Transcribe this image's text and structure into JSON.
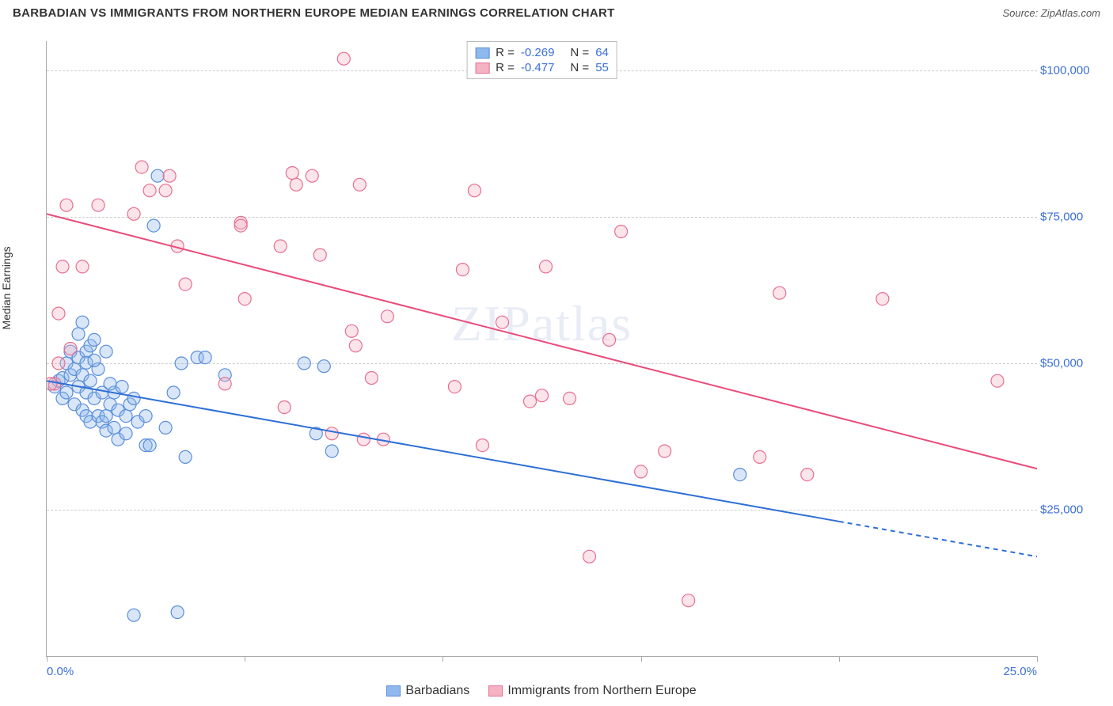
{
  "title": "BARBADIAN VS IMMIGRANTS FROM NORTHERN EUROPE MEDIAN EARNINGS CORRELATION CHART",
  "source": "Source: ZipAtlas.com",
  "ylabel": "Median Earnings",
  "watermark": "ZIPatlas",
  "chart": {
    "type": "scatter",
    "xlim": [
      0,
      25
    ],
    "ylim": [
      0,
      105000
    ],
    "xticks": [
      0,
      5,
      10,
      15,
      20,
      25
    ],
    "xtick_labels_shown": {
      "0": "0.0%",
      "25": "25.0%"
    },
    "yticks": [
      25000,
      50000,
      75000,
      100000
    ],
    "ytick_labels": [
      "$25,000",
      "$50,000",
      "$75,000",
      "$100,000"
    ],
    "grid_color": "#cccccc",
    "axis_color": "#aaaaaa",
    "background_color": "#ffffff",
    "tick_label_color": "#3b6fd6",
    "marker_radius": 8,
    "series": [
      {
        "name": "Barbadians",
        "color_fill": "#8fb8ec",
        "color_stroke": "#5a8edb",
        "line_color": "#2e6fd6",
        "R": "-0.269",
        "N": "64",
        "trend": {
          "x1": 0,
          "y1": 47000,
          "x2": 25,
          "y2": 17000,
          "dash_from_x": 20
        },
        "points": [
          [
            0.2,
            46000
          ],
          [
            0.3,
            47000
          ],
          [
            0.4,
            47500
          ],
          [
            0.4,
            44000
          ],
          [
            0.5,
            50000
          ],
          [
            0.5,
            45000
          ],
          [
            0.6,
            52000
          ],
          [
            0.6,
            48000
          ],
          [
            0.7,
            49000
          ],
          [
            0.7,
            43000
          ],
          [
            0.8,
            55000
          ],
          [
            0.8,
            51000
          ],
          [
            0.8,
            46000
          ],
          [
            0.9,
            57000
          ],
          [
            0.9,
            48000
          ],
          [
            0.9,
            42000
          ],
          [
            1.0,
            52000
          ],
          [
            1.0,
            45000
          ],
          [
            1.0,
            41000
          ],
          [
            1.1,
            53000
          ],
          [
            1.1,
            47000
          ],
          [
            1.1,
            40000
          ],
          [
            1.2,
            54000
          ],
          [
            1.2,
            44000
          ],
          [
            1.3,
            49000
          ],
          [
            1.3,
            41000
          ],
          [
            1.4,
            45000
          ],
          [
            1.4,
            40000
          ],
          [
            1.5,
            52000
          ],
          [
            1.5,
            41000
          ],
          [
            1.5,
            38500
          ],
          [
            1.6,
            43000
          ],
          [
            1.7,
            45000
          ],
          [
            1.7,
            39000
          ],
          [
            1.8,
            42000
          ],
          [
            1.8,
            37000
          ],
          [
            1.9,
            46000
          ],
          [
            2.0,
            41000
          ],
          [
            2.0,
            38000
          ],
          [
            2.1,
            43000
          ],
          [
            2.2,
            44000
          ],
          [
            2.3,
            40000
          ],
          [
            2.5,
            36000
          ],
          [
            2.5,
            41000
          ],
          [
            2.6,
            36000
          ],
          [
            2.7,
            73500
          ],
          [
            2.8,
            82000
          ],
          [
            3.0,
            39000
          ],
          [
            3.2,
            45000
          ],
          [
            3.4,
            50000
          ],
          [
            3.5,
            34000
          ],
          [
            3.8,
            51000
          ],
          [
            4.0,
            51000
          ],
          [
            4.5,
            48000
          ],
          [
            6.5,
            50000
          ],
          [
            6.8,
            38000
          ],
          [
            7.0,
            49500
          ],
          [
            7.2,
            35000
          ],
          [
            2.2,
            7000
          ],
          [
            3.3,
            7500
          ],
          [
            17.5,
            31000
          ],
          [
            1.6,
            46500
          ],
          [
            1.0,
            50100
          ],
          [
            1.2,
            50500
          ]
        ]
      },
      {
        "name": "Immigrants from Northern Europe",
        "color_fill": "#f3b3c3",
        "color_stroke": "#e76f92",
        "line_color": "#e94b7a",
        "R": "-0.477",
        "N": "55",
        "trend": {
          "x1": 0,
          "y1": 75500,
          "x2": 25,
          "y2": 32000
        },
        "points": [
          [
            0.2,
            46500
          ],
          [
            0.3,
            58500
          ],
          [
            0.4,
            66500
          ],
          [
            0.5,
            77000
          ],
          [
            0.6,
            52500
          ],
          [
            0.9,
            66500
          ],
          [
            1.3,
            77000
          ],
          [
            2.2,
            75500
          ],
          [
            2.4,
            83500
          ],
          [
            2.6,
            79500
          ],
          [
            3.0,
            79500
          ],
          [
            3.1,
            82000
          ],
          [
            3.3,
            70000
          ],
          [
            3.5,
            63500
          ],
          [
            4.5,
            46500
          ],
          [
            4.9,
            74000
          ],
          [
            4.9,
            73500
          ],
          [
            5.0,
            61000
          ],
          [
            5.9,
            70000
          ],
          [
            6.0,
            42500
          ],
          [
            6.2,
            82500
          ],
          [
            6.3,
            80500
          ],
          [
            6.7,
            82000
          ],
          [
            6.9,
            68500
          ],
          [
            7.2,
            38000
          ],
          [
            7.5,
            102000
          ],
          [
            7.7,
            55500
          ],
          [
            7.8,
            53000
          ],
          [
            7.9,
            80500
          ],
          [
            8.0,
            37000
          ],
          [
            8.2,
            47500
          ],
          [
            8.5,
            37000
          ],
          [
            8.6,
            58000
          ],
          [
            10.3,
            46000
          ],
          [
            10.5,
            66000
          ],
          [
            10.8,
            79500
          ],
          [
            11.0,
            36000
          ],
          [
            11.5,
            57000
          ],
          [
            12.2,
            43500
          ],
          [
            12.5,
            44500
          ],
          [
            12.6,
            66500
          ],
          [
            13.2,
            44000
          ],
          [
            13.7,
            17000
          ],
          [
            14.2,
            54000
          ],
          [
            14.5,
            72500
          ],
          [
            15.0,
            31500
          ],
          [
            15.6,
            35000
          ],
          [
            16.2,
            9500
          ],
          [
            18.0,
            34000
          ],
          [
            18.5,
            62000
          ],
          [
            19.2,
            31000
          ],
          [
            21.1,
            61000
          ],
          [
            24.0,
            47000
          ],
          [
            0.1,
            46500
          ],
          [
            0.3,
            50000
          ]
        ]
      }
    ]
  }
}
